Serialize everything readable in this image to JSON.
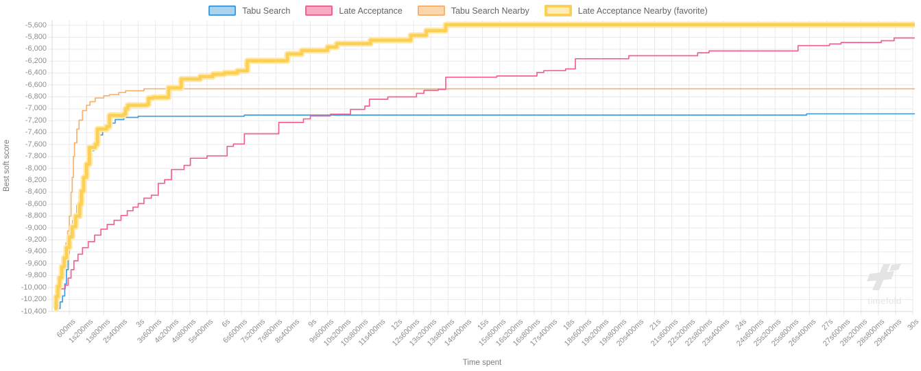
{
  "chart": {
    "legend": [
      {
        "label": "Tabu Search",
        "line_color": "#3e9fe5",
        "fill_color": "#a8d4f2",
        "favorite": false
      },
      {
        "label": "Late Acceptance",
        "line_color": "#f4618c",
        "fill_color": "#f9abc3",
        "favorite": false
      },
      {
        "label": "Tabu Search Nearby",
        "line_color": "#f7b26b",
        "fill_color": "#fbd8ab",
        "favorite": false
      },
      {
        "label": "Late Acceptance Nearby (favorite)",
        "line_color": "#fccf55",
        "fill_color": "#fdeeb9",
        "favorite": true
      }
    ],
    "y_axis": {
      "title": "Best soft score",
      "ticks": [
        "-5,600",
        "-5,800",
        "-6,000",
        "-6,200",
        "-6,400",
        "-6,600",
        "-6,800",
        "-7,000",
        "-7,200",
        "-7,400",
        "-7,600",
        "-7,800",
        "-8,000",
        "-8,200",
        "-8,400",
        "-8,600",
        "-8,800",
        "-9,000",
        "-9,200",
        "-9,400",
        "-9,600",
        "-9,800",
        "-10,000",
        "-10,200",
        "-10,400"
      ]
    },
    "x_axis": {
      "title": "Time spent",
      "ticks": [
        "600ms",
        "1s200ms",
        "1s800ms",
        "2s400ms",
        "3s",
        "3s600ms",
        "4s200ms",
        "4s800ms",
        "5s400ms",
        "6s",
        "6s600ms",
        "7s200ms",
        "7s800ms",
        "8s400ms",
        "9s",
        "9s600ms",
        "10s200ms",
        "10s800ms",
        "11s400ms",
        "12s",
        "12s600ms",
        "13s200ms",
        "13s800ms",
        "14s400ms",
        "15s",
        "15s600ms",
        "16s200ms",
        "16s800ms",
        "17s400ms",
        "18s",
        "18s600ms",
        "19s200ms",
        "19s800ms",
        "20s400ms",
        "21s",
        "21s600ms",
        "22s200ms",
        "22s800ms",
        "23s400ms",
        "24s",
        "24s600ms",
        "25s200ms",
        "25s800ms",
        "26s400ms",
        "27s",
        "27s600ms",
        "28s200ms",
        "28s800ms",
        "29s400ms",
        "30s"
      ]
    },
    "grid_color": "#e9e9e9",
    "axis_border_color": "#d9d9d9",
    "watermark": "timefold"
  },
  "chart_data": {
    "type": "line",
    "step": true,
    "title": "",
    "xlabel": "Time spent",
    "ylabel": "Best soft score",
    "x_unit": "seconds",
    "xlim": [
      0,
      30
    ],
    "ylim": [
      -10400,
      -5600
    ],
    "y_tick_step": 200,
    "x_tick_step": 0.6,
    "grid": true,
    "legend_position": "top",
    "series": [
      {
        "name": "Tabu Search",
        "color": "#3e9fe5",
        "width": 1.7,
        "points": [
          [
            0.22,
            -10350
          ],
          [
            0.28,
            -10240
          ],
          [
            0.36,
            -10140
          ],
          [
            0.44,
            -9940
          ],
          [
            0.5,
            -9700
          ],
          [
            0.56,
            -9430
          ],
          [
            0.6,
            -9150
          ],
          [
            0.66,
            -8980
          ],
          [
            0.72,
            -8870
          ],
          [
            0.8,
            -8790
          ],
          [
            0.86,
            -8620
          ],
          [
            0.94,
            -8450
          ],
          [
            1.02,
            -8260
          ],
          [
            1.12,
            -8060
          ],
          [
            1.22,
            -7890
          ],
          [
            1.34,
            -7700
          ],
          [
            1.46,
            -7560
          ],
          [
            1.6,
            -7440
          ],
          [
            1.76,
            -7330
          ],
          [
            1.96,
            -7240
          ],
          [
            2.2,
            -7180
          ],
          [
            2.5,
            -7145
          ],
          [
            3.0,
            -7125
          ],
          [
            6.7,
            -7105
          ],
          [
            26.3,
            -7085
          ]
        ]
      },
      {
        "name": "Late Acceptance",
        "color": "#f4618c",
        "width": 1.7,
        "points": [
          [
            0.1,
            -10350
          ],
          [
            0.18,
            -10150
          ],
          [
            0.28,
            -10020
          ],
          [
            0.46,
            -9960
          ],
          [
            0.56,
            -9840
          ],
          [
            0.66,
            -9700
          ],
          [
            0.76,
            -9550
          ],
          [
            0.9,
            -9440
          ],
          [
            1.06,
            -9330
          ],
          [
            1.26,
            -9230
          ],
          [
            1.48,
            -9120
          ],
          [
            1.7,
            -9020
          ],
          [
            1.92,
            -8940
          ],
          [
            2.16,
            -8870
          ],
          [
            2.4,
            -8790
          ],
          [
            2.62,
            -8710
          ],
          [
            2.82,
            -8650
          ],
          [
            3.0,
            -8590
          ],
          [
            3.2,
            -8500
          ],
          [
            3.46,
            -8450
          ],
          [
            3.7,
            -8250
          ],
          [
            3.92,
            -8190
          ],
          [
            4.16,
            -8020
          ],
          [
            4.6,
            -7950
          ],
          [
            4.82,
            -7830
          ],
          [
            5.4,
            -7790
          ],
          [
            6.1,
            -7630
          ],
          [
            6.32,
            -7590
          ],
          [
            6.7,
            -7420
          ],
          [
            7.9,
            -7230
          ],
          [
            8.76,
            -7170
          ],
          [
            9.0,
            -7120
          ],
          [
            9.7,
            -7090
          ],
          [
            10.4,
            -7010
          ],
          [
            10.9,
            -6955
          ],
          [
            11.06,
            -6840
          ],
          [
            11.7,
            -6800
          ],
          [
            12.7,
            -6740
          ],
          [
            12.96,
            -6690
          ],
          [
            13.46,
            -6675
          ],
          [
            13.72,
            -6470
          ],
          [
            15.5,
            -6450
          ],
          [
            16.9,
            -6390
          ],
          [
            17.14,
            -6360
          ],
          [
            17.9,
            -6330
          ],
          [
            18.24,
            -6160
          ],
          [
            20.1,
            -6110
          ],
          [
            22.5,
            -6060
          ],
          [
            22.9,
            -6030
          ],
          [
            26.0,
            -5940
          ],
          [
            27.1,
            -5912
          ],
          [
            27.5,
            -5888
          ],
          [
            28.9,
            -5858
          ],
          [
            29.35,
            -5812
          ]
        ]
      },
      {
        "name": "Tabu Search Nearby",
        "color": "#f7b26b",
        "width": 1.7,
        "points": [
          [
            0.08,
            -10350
          ],
          [
            0.12,
            -10200
          ],
          [
            0.18,
            -10050
          ],
          [
            0.24,
            -9850
          ],
          [
            0.32,
            -9650
          ],
          [
            0.4,
            -9450
          ],
          [
            0.48,
            -9250
          ],
          [
            0.54,
            -9050
          ],
          [
            0.6,
            -8800
          ],
          [
            0.66,
            -8400
          ],
          [
            0.7,
            -8150
          ],
          [
            0.74,
            -7800
          ],
          [
            0.78,
            -7570
          ],
          [
            0.86,
            -7340
          ],
          [
            0.94,
            -7190
          ],
          [
            1.06,
            -7030
          ],
          [
            1.2,
            -6940
          ],
          [
            1.32,
            -6880
          ],
          [
            1.5,
            -6820
          ],
          [
            1.8,
            -6780
          ],
          [
            2.0,
            -6762
          ],
          [
            2.32,
            -6728
          ],
          [
            2.56,
            -6698
          ],
          [
            3.2,
            -6665
          ]
        ]
      },
      {
        "name": "Late Acceptance Nearby (favorite)",
        "color": "#fccf55",
        "halo_color": "#fee8ab",
        "width": 4.5,
        "halo_width": 9,
        "points": [
          [
            0.08,
            -10350
          ],
          [
            0.14,
            -10150
          ],
          [
            0.2,
            -9980
          ],
          [
            0.26,
            -9830
          ],
          [
            0.34,
            -9650
          ],
          [
            0.42,
            -9500
          ],
          [
            0.5,
            -9330
          ],
          [
            0.6,
            -9150
          ],
          [
            0.7,
            -8980
          ],
          [
            0.82,
            -8800
          ],
          [
            0.96,
            -8600
          ],
          [
            1.02,
            -8380
          ],
          [
            1.1,
            -8150
          ],
          [
            1.2,
            -7930
          ],
          [
            1.3,
            -7650
          ],
          [
            1.5,
            -7598
          ],
          [
            1.58,
            -7340
          ],
          [
            1.9,
            -7298
          ],
          [
            2.0,
            -7110
          ],
          [
            2.5,
            -7088
          ],
          [
            2.56,
            -7000
          ],
          [
            2.64,
            -6940
          ],
          [
            3.3,
            -6928
          ],
          [
            3.36,
            -6820
          ],
          [
            3.52,
            -6808
          ],
          [
            4.06,
            -6650
          ],
          [
            4.5,
            -6500
          ],
          [
            5.16,
            -6460
          ],
          [
            5.6,
            -6420
          ],
          [
            6.0,
            -6398
          ],
          [
            6.46,
            -6364
          ],
          [
            6.8,
            -6195
          ],
          [
            8.2,
            -6080
          ],
          [
            8.7,
            -6024
          ],
          [
            9.6,
            -5964
          ],
          [
            9.92,
            -5908
          ],
          [
            11.1,
            -5850
          ],
          [
            12.5,
            -5768
          ],
          [
            13.04,
            -5690
          ],
          [
            13.72,
            -5590
          ]
        ]
      }
    ]
  }
}
